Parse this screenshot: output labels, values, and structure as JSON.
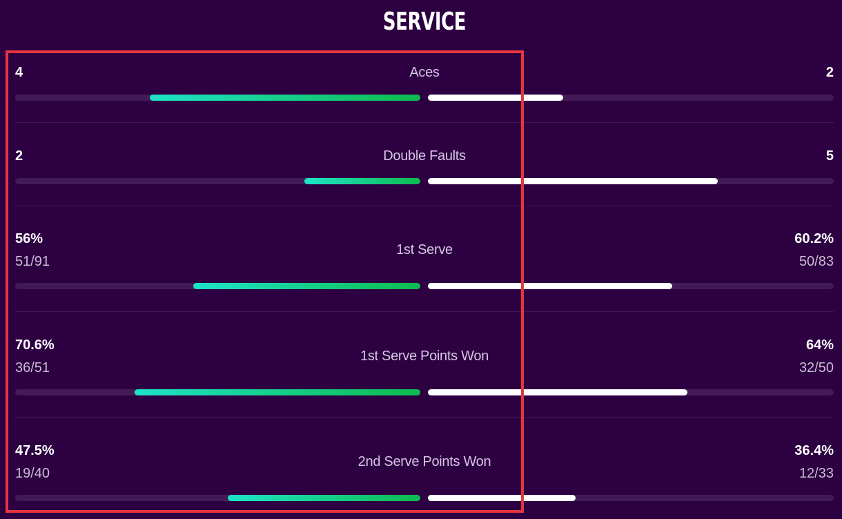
{
  "section": {
    "title": "SERVICE",
    "highlight_color": "#e5363f",
    "left_bar_gradient": [
      "#1ee3c8",
      "#0dbb4e"
    ],
    "right_bar_color": "#ffffff"
  },
  "stats": [
    {
      "label": "Aces",
      "left_value": "4",
      "right_value": "2",
      "left_sub": "",
      "right_sub": "",
      "left_fraction": 0.667,
      "right_fraction": 0.333
    },
    {
      "label": "Double Faults",
      "left_value": "2",
      "right_value": "5",
      "left_sub": "",
      "right_sub": "",
      "left_fraction": 0.286,
      "right_fraction": 0.714
    },
    {
      "label": "1st Serve",
      "left_value": "56%",
      "right_value": "60.2%",
      "left_sub": "51/91",
      "right_sub": "50/83",
      "left_fraction": 0.56,
      "right_fraction": 0.602
    },
    {
      "label": "1st Serve Points Won",
      "left_value": "70.6%",
      "right_value": "64%",
      "left_sub": "36/51",
      "right_sub": "32/50",
      "left_fraction": 0.706,
      "right_fraction": 0.64
    },
    {
      "label": "2nd Serve Points Won",
      "left_value": "47.5%",
      "right_value": "36.4%",
      "left_sub": "19/40",
      "right_sub": "12/33",
      "left_fraction": 0.475,
      "right_fraction": 0.364
    }
  ]
}
